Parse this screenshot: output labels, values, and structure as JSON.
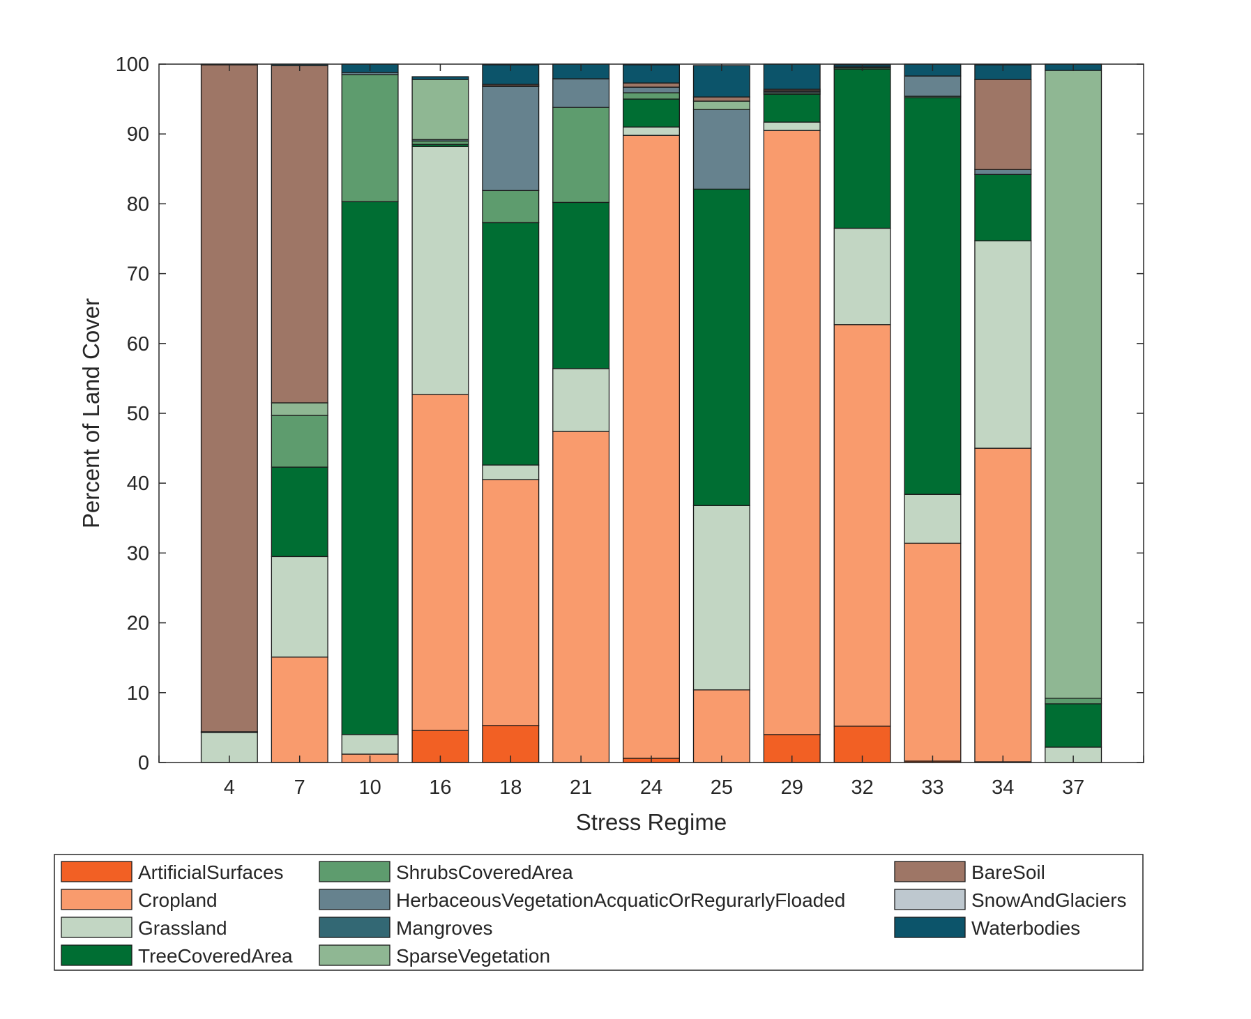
{
  "chart_data": {
    "type": "bar",
    "stacked": true,
    "xlabel": "Stress Regime",
    "ylabel": "Percent of Land Cover",
    "ylim": [
      0,
      100
    ],
    "yticks": [
      0,
      10,
      20,
      30,
      40,
      50,
      60,
      70,
      80,
      90,
      100
    ],
    "grid": false,
    "legend_position": "bottom",
    "categories": [
      "4",
      "7",
      "10",
      "16",
      "18",
      "21",
      "24",
      "25",
      "29",
      "32",
      "33",
      "34",
      "37"
    ],
    "series": [
      {
        "name": "ArtificialSurfaces",
        "color": "#F26024",
        "values": [
          0,
          0,
          0,
          4.6,
          5.3,
          0,
          0.6,
          0,
          4.0,
          5.2,
          0.2,
          0.1,
          0
        ]
      },
      {
        "name": "Cropland",
        "color": "#F99B6D",
        "values": [
          0,
          15.1,
          1.2,
          48.1,
          35.2,
          47.4,
          89.2,
          10.4,
          86.5,
          57.5,
          31.2,
          44.9,
          0
        ]
      },
      {
        "name": "Grassland",
        "color": "#C2D6C3",
        "values": [
          4.3,
          14.4,
          2.8,
          35.5,
          2.1,
          9.0,
          1.2,
          26.4,
          1.2,
          13.8,
          7.0,
          29.7,
          2.2
        ]
      },
      {
        "name": "TreeCoveredArea",
        "color": "#006E33",
        "values": [
          0.1,
          12.8,
          76.3,
          0.3,
          34.7,
          23.8,
          4.0,
          45.3,
          4.0,
          22.8,
          56.8,
          9.5,
          6.2
        ]
      },
      {
        "name": "ShrubsCoveredArea",
        "color": "#5E9C6E",
        "values": [
          0,
          7.4,
          18.2,
          0.5,
          4.6,
          13.6,
          0.9,
          0,
          0.2,
          0.2,
          0.2,
          0,
          0.8
        ]
      },
      {
        "name": "HerbaceousVegetationAcquaticOrRegurarlyFloaded",
        "color": "#66828E",
        "values": [
          0,
          0,
          0.3,
          0.2,
          14.9,
          4.1,
          0.8,
          11.4,
          0.2,
          0.1,
          2.9,
          0.7,
          0
        ]
      },
      {
        "name": "Mangroves",
        "color": "#336874",
        "values": [
          0,
          0,
          0,
          0,
          0.1,
          0,
          0,
          0,
          0,
          0,
          0,
          0,
          0
        ]
      },
      {
        "name": "SparseVegetation",
        "color": "#8FB793",
        "values": [
          0,
          1.8,
          0,
          8.6,
          0,
          0,
          0,
          1.2,
          0.1,
          0,
          0,
          0,
          89.9
        ]
      },
      {
        "name": "BareSoil",
        "color": "#9E7666",
        "values": [
          95.5,
          48.3,
          0,
          0,
          0.2,
          0,
          0.6,
          0.6,
          0.2,
          0,
          0,
          12.9,
          0
        ]
      },
      {
        "name": "SnowAndGlaciers",
        "color": "#BEC8CF",
        "values": [
          0,
          0,
          0,
          0,
          0,
          0,
          0,
          0,
          0,
          0,
          0,
          0,
          0
        ]
      },
      {
        "name": "Waterbodies",
        "color": "#0C546A",
        "values": [
          0.1,
          0.2,
          1.2,
          0.4,
          2.8,
          2.1,
          2.6,
          4.5,
          3.6,
          0.3,
          1.7,
          2.1,
          0.9
        ]
      }
    ]
  }
}
